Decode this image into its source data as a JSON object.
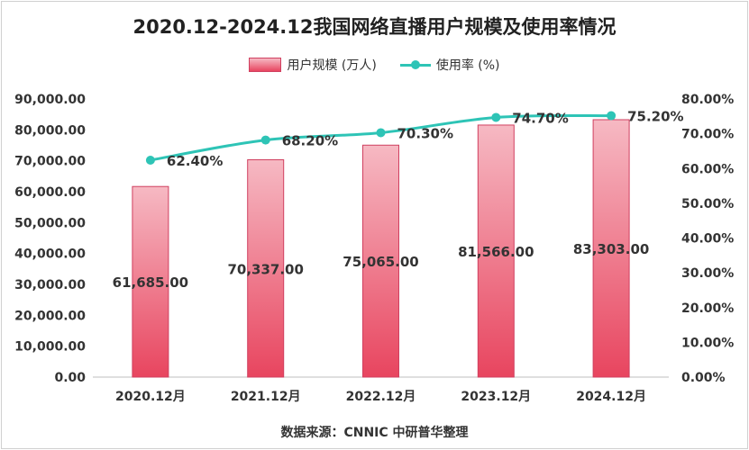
{
  "chart_data": {
    "type": "bar",
    "title": "2020.12-2024.12我国网络直播用户规模及使用率情况",
    "categories": [
      "2020.12月",
      "2021.12月",
      "2022.12月",
      "2023.12月",
      "2024.12月"
    ],
    "series": [
      {
        "name": "用户规模 (万人)",
        "type": "bar",
        "axis": "left",
        "values": [
          61685,
          70337,
          75065,
          81566,
          83303
        ],
        "labels": [
          "61,685.00",
          "70,337.00",
          "75,065.00",
          "81,566.00",
          "83,303.00"
        ]
      },
      {
        "name": "使用率 (%)",
        "type": "line",
        "axis": "right",
        "values": [
          62.4,
          68.2,
          70.3,
          74.7,
          75.2
        ],
        "labels": [
          "62.40%",
          "68.20%",
          "70.30%",
          "74.70%",
          "75.20%"
        ]
      }
    ],
    "ylim_left": [
      0,
      90000
    ],
    "ylim_right": [
      0,
      80
    ],
    "yticks_left": [
      "0.00",
      "10,000.00",
      "20,000.00",
      "30,000.00",
      "40,000.00",
      "50,000.00",
      "60,000.00",
      "70,000.00",
      "80,000.00",
      "90,000.00"
    ],
    "yticks_right": [
      "0.00%",
      "10.00%",
      "20.00%",
      "30.00%",
      "40.00%",
      "50.00%",
      "60.00%",
      "70.00%",
      "80.00%"
    ],
    "legend_position": "top-center",
    "grid": false,
    "colors": {
      "bar_top": "#f6b9c3",
      "bar_bottom": "#e8455f",
      "bar_border": "#d04060",
      "line": "#2ec4b6"
    }
  },
  "source": "数据来源：CNNIC 中研普华整理"
}
